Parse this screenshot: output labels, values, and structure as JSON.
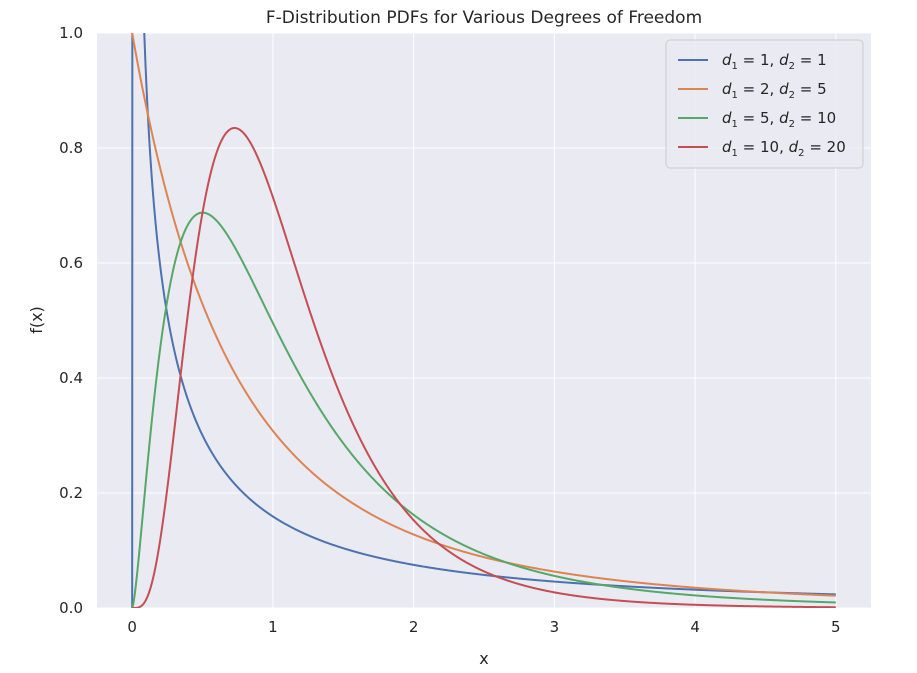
{
  "chart_data": {
    "type": "line",
    "title": "F-Distribution PDFs for Various Degrees of Freedom",
    "xlabel": "x",
    "ylabel": "f(x)",
    "xlim": [
      -0.25,
      5.25
    ],
    "ylim": [
      0,
      1.0
    ],
    "x_ticks": [
      "0",
      "1",
      "2",
      "3",
      "4",
      "5"
    ],
    "y_ticks": [
      "0.0",
      "0.2",
      "0.4",
      "0.6",
      "0.8",
      "1.0"
    ],
    "grid": true,
    "legend_position": "top-right",
    "x_range": [
      0,
      5
    ],
    "series": [
      {
        "name": "d1 = 1, d2 = 1",
        "d1": 1,
        "d2": 1,
        "color": "#4c72b0",
        "legend": {
          "a": "1",
          "b": "1"
        }
      },
      {
        "name": "d1 = 2, d2 = 5",
        "d1": 2,
        "d2": 5,
        "color": "#dd8452",
        "legend": {
          "a": "2",
          "b": "5"
        }
      },
      {
        "name": "d1 = 5, d2 = 10",
        "d1": 5,
        "d2": 10,
        "color": "#55a868",
        "legend": {
          "a": "5",
          "b": "10"
        }
      },
      {
        "name": "d1 = 10, d2 = 20",
        "d1": 10,
        "d2": 20,
        "color": "#c44e52",
        "legend": {
          "a": "10",
          "b": "20"
        }
      }
    ]
  },
  "colors": {
    "plot_background": "#eaeaf2",
    "grid": "#ffffff"
  }
}
